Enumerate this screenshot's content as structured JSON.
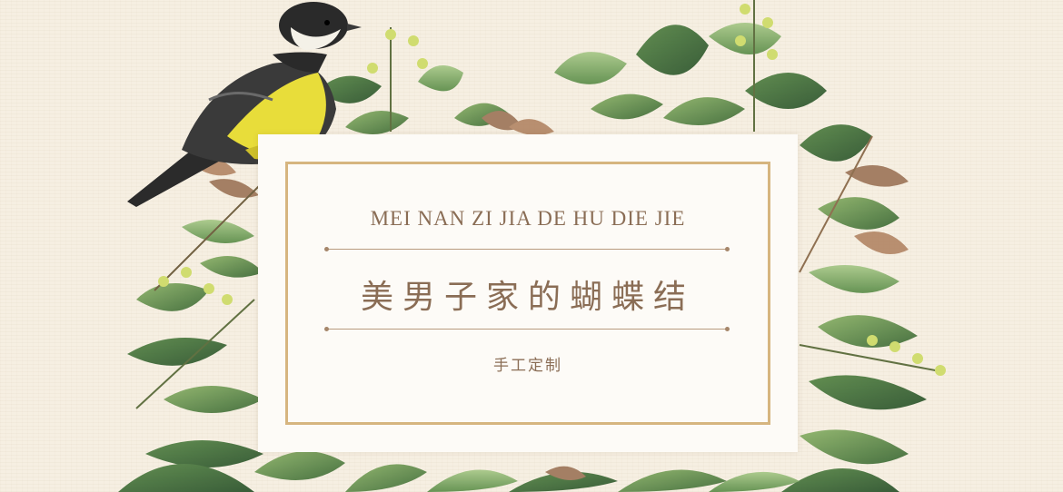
{
  "banner": {
    "title_en": "MEI NAN ZI JIA DE HU DIE JIE",
    "title_cn": "美男子家的蝴蝶结",
    "subtitle": "手工定制"
  },
  "decor": {
    "bird": "bird-illustration",
    "foliage": "watercolor-leaves",
    "colors": {
      "background": "#f6efe2",
      "card": "#fdfbf7",
      "frame": "#d6b57f",
      "text": "#8a6d55",
      "leaf_dark": "#3f6b3a",
      "leaf_light": "#7fa862",
      "bird_yellow": "#e8dd3a"
    }
  }
}
